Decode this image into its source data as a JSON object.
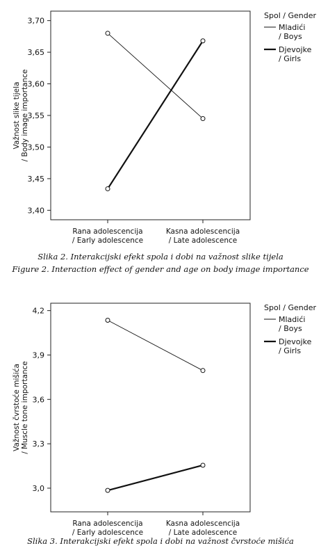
{
  "chart_data": [
    {
      "type": "line",
      "categories": [
        "Rana adolescencija / Early adolescence",
        "Kasna adolescencija / Late adolescence"
      ],
      "category_lines": [
        [
          "Rana adolescencija",
          "/ Early adolescence"
        ],
        [
          "Kasna adolescencija",
          "/ Late adolescence"
        ]
      ],
      "series": [
        {
          "name": "Mladići / Boys",
          "name_lines": [
            "Mladići",
            "/ Boys"
          ],
          "values": [
            3.68,
            3.545
          ],
          "style": "thin"
        },
        {
          "name": "Djevojke / Girls",
          "name_lines": [
            "Djevojke",
            "/ Girls"
          ],
          "values": [
            3.434,
            3.668
          ],
          "style": "thick"
        }
      ],
      "ylabel_lines": [
        "Važnost slike tijela",
        "/ Body image importance"
      ],
      "ylim": [
        3.385,
        3.715
      ],
      "yticks": [
        3.4,
        3.45,
        3.5,
        3.55,
        3.6,
        3.65,
        3.7
      ],
      "ytick_labels": [
        "3,40",
        "3,45",
        "3,50",
        "3,55",
        "3,60",
        "3,65",
        "3,70"
      ],
      "legend_title": "Spol / Gender",
      "legend_position": "right",
      "grid": false,
      "caption_lines": [
        "Slika 2. Interakcijski efekt spola i dobi na važnost slike tijela",
        "Figure 2. Interaction effect of gender and age on body image importance"
      ]
    },
    {
      "type": "line",
      "categories": [
        "Rana adolescencija / Early adolescence",
        "Kasna adolescencija / Late adolescence"
      ],
      "category_lines": [
        [
          "Rana adolescencija",
          "/ Early adolescence"
        ],
        [
          "Kasna adolescencija",
          "/ Late adolescence"
        ]
      ],
      "series": [
        {
          "name": "Mladići / Boys",
          "name_lines": [
            "Mladići",
            "/ Boys"
          ],
          "values": [
            4.135,
            3.795
          ],
          "style": "thin"
        },
        {
          "name": "Djevojke / Girls",
          "name_lines": [
            "Djevojke",
            "/ Girls"
          ],
          "values": [
            2.985,
            3.155
          ],
          "style": "thick"
        }
      ],
      "ylabel_lines": [
        "Važnost čvrstoće mišića",
        "/ Muscle tone importance"
      ],
      "ylim": [
        2.84,
        4.25
      ],
      "yticks": [
        3.0,
        3.3,
        3.6,
        3.9,
        4.2
      ],
      "ytick_labels": [
        "3,0",
        "3,3",
        "3,6",
        "3,9",
        "4,2"
      ],
      "legend_title": "Spol / Gender",
      "legend_position": "right",
      "grid": false,
      "caption_lines": [
        "Slika 3. Interakcijski efekt spola i dobi na važnost čvrstoće mišića"
      ]
    }
  ]
}
